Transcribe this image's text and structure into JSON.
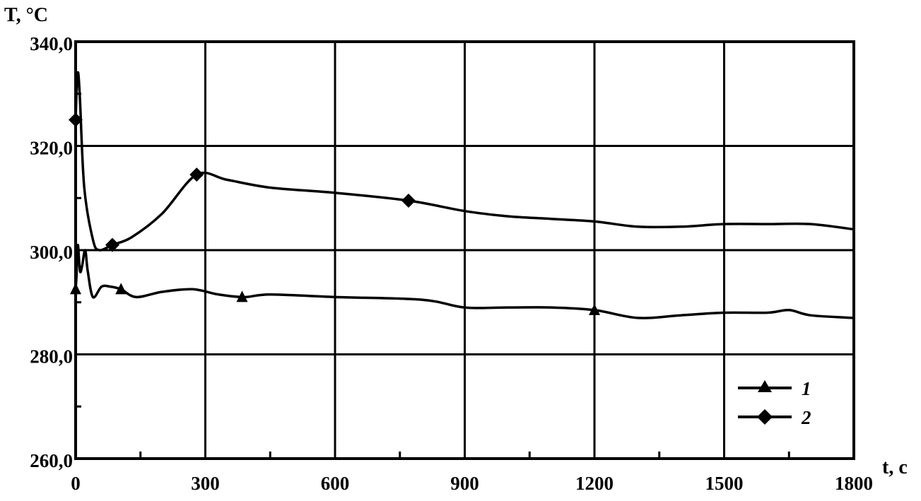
{
  "chart_data": {
    "type": "line",
    "title": "",
    "xlabel": "t, c",
    "ylabel": "T, °C",
    "xlim": [
      0,
      1800
    ],
    "ylim": [
      260,
      340
    ],
    "x_ticks": [
      0,
      300,
      600,
      900,
      1200,
      1500,
      1800
    ],
    "x_tick_labels": [
      "0",
      "300",
      "600",
      "900",
      "1200",
      "1500",
      "1800"
    ],
    "y_ticks": [
      260,
      280,
      300,
      320,
      340
    ],
    "y_tick_labels": [
      "260,0",
      "280,0",
      "300,0",
      "320,0",
      "340,0"
    ],
    "grid": true,
    "legend_position": "bottom-right",
    "series": [
      {
        "name": "1",
        "marker": "triangle",
        "color": "#000000",
        "x": [
          0,
          2,
          5,
          10,
          15,
          22,
          28,
          40,
          60,
          80,
          105,
          140,
          200,
          270,
          330,
          390,
          450,
          600,
          800,
          900,
          1000,
          1100,
          1200,
          1300,
          1400,
          1500,
          1600,
          1650,
          1700,
          1800
        ],
        "y": [
          292.5,
          295,
          301,
          296,
          297,
          300,
          296,
          291,
          293,
          293,
          292.5,
          291,
          292,
          292.5,
          291.5,
          291,
          291.5,
          291,
          290.5,
          289,
          289,
          289,
          288.5,
          287,
          287.5,
          288,
          288,
          288.5,
          287.5,
          287
        ],
        "markers_x": [
          0,
          105,
          385,
          1200
        ],
        "markers_y": [
          292.5,
          292.5,
          291,
          288.5
        ]
      },
      {
        "name": "2",
        "marker": "diamond",
        "color": "#000000",
        "x": [
          0,
          3,
          6,
          10,
          20,
          40,
          55,
          85,
          130,
          200,
          280,
          350,
          450,
          600,
          770,
          900,
          1000,
          1100,
          1200,
          1300,
          1400,
          1500,
          1600,
          1700,
          1800
        ],
        "y": [
          325,
          332,
          334,
          329,
          312,
          302,
          300,
          301,
          302.5,
          307,
          314.5,
          313.5,
          312,
          311,
          309.5,
          307.5,
          306.5,
          306,
          305.5,
          304.5,
          304.5,
          305,
          305,
          305,
          304
        ],
        "markers_x": [
          0,
          85,
          280,
          770
        ],
        "markers_y": [
          325,
          301,
          314.5,
          309.5
        ]
      }
    ]
  }
}
